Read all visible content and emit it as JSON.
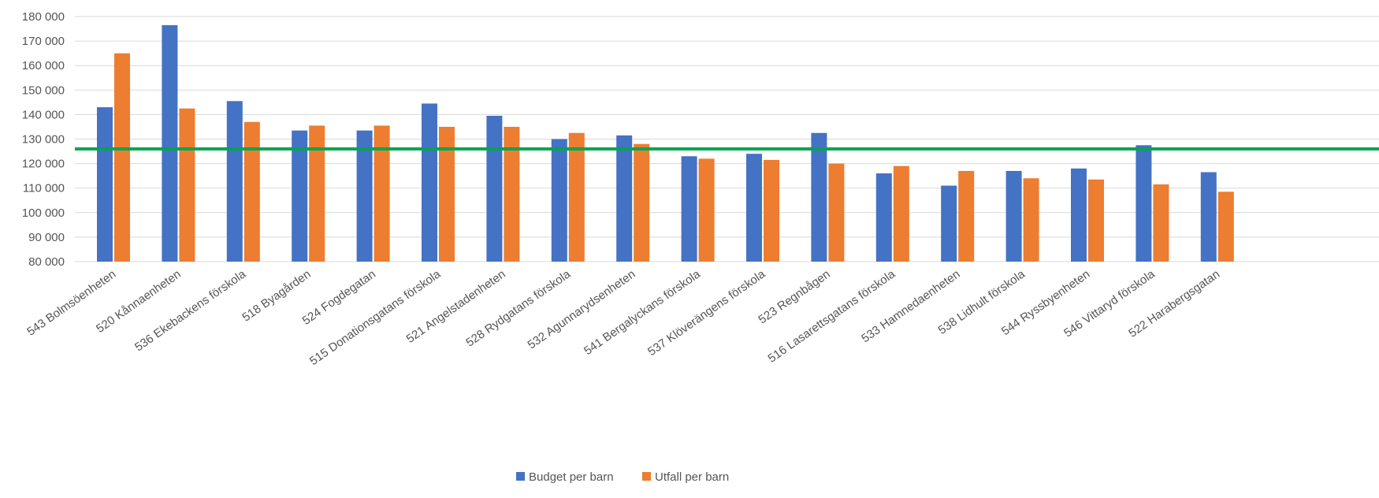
{
  "chart_data": {
    "type": "bar",
    "categories": [
      "543 Bolmsöenheten",
      "520 Kånnaenheten",
      "536 Ekebackens förskola",
      "518 Byagården",
      "524 Fogdegatan",
      "515 Donationsgatans förskola",
      "521 Angelstadenheten",
      "528 Rydgatans förskola",
      "532 Agunnarydsenheten",
      "541 Bergalyckans förskola",
      "537 Klöverängens förskola",
      "523 Regnbågen",
      "516 Lasarettsgatans förskola",
      "533 Hamnedaenheten",
      "538 Lidhult förskola",
      "544 Ryssbyenheten",
      "546 Vittaryd förskola",
      "522 Harabergsgatan"
    ],
    "series": [
      {
        "name": "Budget per barn",
        "color": "#4472c4",
        "values": [
          143000,
          176500,
          145500,
          133500,
          133500,
          144500,
          139500,
          130000,
          131500,
          123000,
          124000,
          132500,
          116000,
          111000,
          117000,
          118000,
          127500,
          116500
        ]
      },
      {
        "name": "Utfall per barn",
        "color": "#ed7d31",
        "values": [
          165000,
          142500,
          137000,
          135500,
          135500,
          135000,
          135000,
          132500,
          128000,
          122000,
          121500,
          120000,
          119000,
          117000,
          114000,
          113500,
          111500,
          108500
        ]
      }
    ],
    "reference_line": {
      "value": 126000,
      "color": "#00a650"
    },
    "ylim": [
      80000,
      180000
    ],
    "yticks": [
      80000,
      90000,
      100000,
      110000,
      120000,
      130000,
      140000,
      150000,
      160000,
      170000,
      180000
    ],
    "grid": true,
    "legend": "bottom-center",
    "title": "",
    "xlabel": "",
    "ylabel": ""
  }
}
